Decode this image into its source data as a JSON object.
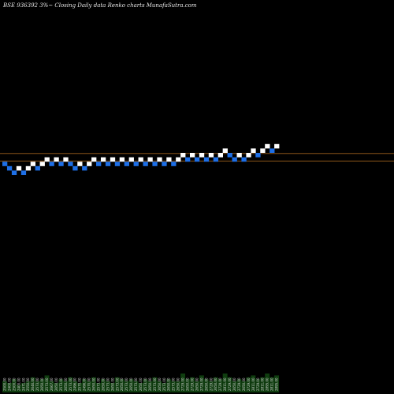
{
  "header": {
    "title": "BSE 936392  3%~  Closing Daily data  Renko  charts MunafaSutra.com"
  },
  "chart_data": {
    "type": "renko",
    "title": "BSE 936392  3%~  Closing Daily data  Renko  charts MunafaSutra.com",
    "brick_size_label": "3%",
    "colors": {
      "background": "#000000",
      "up_brick": "#ffffff",
      "down_brick": "#1e6fe6",
      "reference_line": "#a0621e",
      "volume_bar": "#0f3d0f"
    },
    "bricks": [
      {
        "level": 3,
        "dir": "down"
      },
      {
        "level": 2,
        "dir": "down"
      },
      {
        "level": 1,
        "dir": "down"
      },
      {
        "level": 2,
        "dir": "up"
      },
      {
        "level": 1,
        "dir": "down"
      },
      {
        "level": 2,
        "dir": "up"
      },
      {
        "level": 3,
        "dir": "up"
      },
      {
        "level": 2,
        "dir": "down"
      },
      {
        "level": 3,
        "dir": "up"
      },
      {
        "level": 4,
        "dir": "up"
      },
      {
        "level": 3,
        "dir": "down"
      },
      {
        "level": 4,
        "dir": "up"
      },
      {
        "level": 3,
        "dir": "down"
      },
      {
        "level": 4,
        "dir": "up"
      },
      {
        "level": 3,
        "dir": "down"
      },
      {
        "level": 2,
        "dir": "down"
      },
      {
        "level": 3,
        "dir": "up"
      },
      {
        "level": 2,
        "dir": "down"
      },
      {
        "level": 3,
        "dir": "up"
      },
      {
        "level": 4,
        "dir": "up"
      },
      {
        "level": 3,
        "dir": "down"
      },
      {
        "level": 4,
        "dir": "up"
      },
      {
        "level": 3,
        "dir": "down"
      },
      {
        "level": 4,
        "dir": "up"
      },
      {
        "level": 3,
        "dir": "down"
      },
      {
        "level": 4,
        "dir": "up"
      },
      {
        "level": 3,
        "dir": "down"
      },
      {
        "level": 4,
        "dir": "up"
      },
      {
        "level": 3,
        "dir": "down"
      },
      {
        "level": 4,
        "dir": "up"
      },
      {
        "level": 3,
        "dir": "down"
      },
      {
        "level": 4,
        "dir": "up"
      },
      {
        "level": 3,
        "dir": "down"
      },
      {
        "level": 4,
        "dir": "up"
      },
      {
        "level": 3,
        "dir": "down"
      },
      {
        "level": 4,
        "dir": "up"
      },
      {
        "level": 3,
        "dir": "down"
      },
      {
        "level": 4,
        "dir": "up"
      },
      {
        "level": 5,
        "dir": "up"
      },
      {
        "level": 4,
        "dir": "down"
      },
      {
        "level": 5,
        "dir": "up"
      },
      {
        "level": 4,
        "dir": "down"
      },
      {
        "level": 5,
        "dir": "up"
      },
      {
        "level": 4,
        "dir": "down"
      },
      {
        "level": 5,
        "dir": "up"
      },
      {
        "level": 4,
        "dir": "down"
      },
      {
        "level": 5,
        "dir": "up"
      },
      {
        "level": 6,
        "dir": "up"
      },
      {
        "level": 5,
        "dir": "down"
      },
      {
        "level": 4,
        "dir": "down"
      },
      {
        "level": 5,
        "dir": "up"
      },
      {
        "level": 4,
        "dir": "down"
      },
      {
        "level": 5,
        "dir": "up"
      },
      {
        "level": 6,
        "dir": "up"
      },
      {
        "level": 5,
        "dir": "down"
      },
      {
        "level": 6,
        "dir": "up"
      },
      {
        "level": 7,
        "dir": "up"
      },
      {
        "level": 6,
        "dir": "down"
      },
      {
        "level": 7,
        "dir": "up"
      }
    ],
    "reference_levels": [
      5.85,
      4.15
    ],
    "x_tick_labels": [
      "2500.00",
      "2400.00",
      "2500.00",
      "2400.00",
      "2471.00",
      "2550.00",
      "2646.00",
      "2573.00",
      "2650.00",
      "2573.00",
      "2667.00",
      "2650.00",
      "2573.00",
      "2650.00",
      "2573.00",
      "2496.00",
      "2570.00",
      "2496.00",
      "2570.00",
      "2650.00",
      "2573.00",
      "2650.00",
      "2573.00",
      "2650.00",
      "2573.00",
      "2650.00",
      "2573.00",
      "2650.00",
      "2573.00",
      "2650.00",
      "2573.00",
      "2650.00",
      "2573.00",
      "2650.00",
      "2573.00",
      "2650.00",
      "2573.00",
      "2650.00",
      "2729.00",
      "2650.00",
      "2729.00",
      "2650.00",
      "2729.00",
      "2650.00",
      "2729.00",
      "2650.00",
      "2729.00",
      "2811.00",
      "2729.00",
      "2650.00",
      "2729.00",
      "2650.00",
      "2729.00",
      "2811.00",
      "2729.00",
      "2811.00",
      "2895.00",
      "2811.00",
      "2895.00"
    ],
    "volume": [
      0.3,
      0.25,
      0.35,
      0.2,
      0.25,
      0.3,
      0.4,
      0.3,
      0.35,
      0.45,
      0.3,
      0.25,
      0.35,
      0.3,
      0.4,
      0.3,
      0.25,
      0.35,
      0.3,
      0.4,
      0.25,
      0.35,
      0.3,
      0.25,
      0.4,
      0.35,
      0.3,
      0.35,
      0.3,
      0.25,
      0.35,
      0.3,
      0.4,
      0.3,
      0.25,
      0.35,
      0.3,
      0.3,
      0.5,
      0.35,
      0.4,
      0.3,
      0.45,
      0.35,
      0.3,
      0.4,
      0.35,
      0.5,
      0.4,
      0.3,
      0.35,
      0.3,
      0.4,
      0.45,
      0.35,
      0.4,
      0.5,
      0.4,
      0.45
    ]
  }
}
